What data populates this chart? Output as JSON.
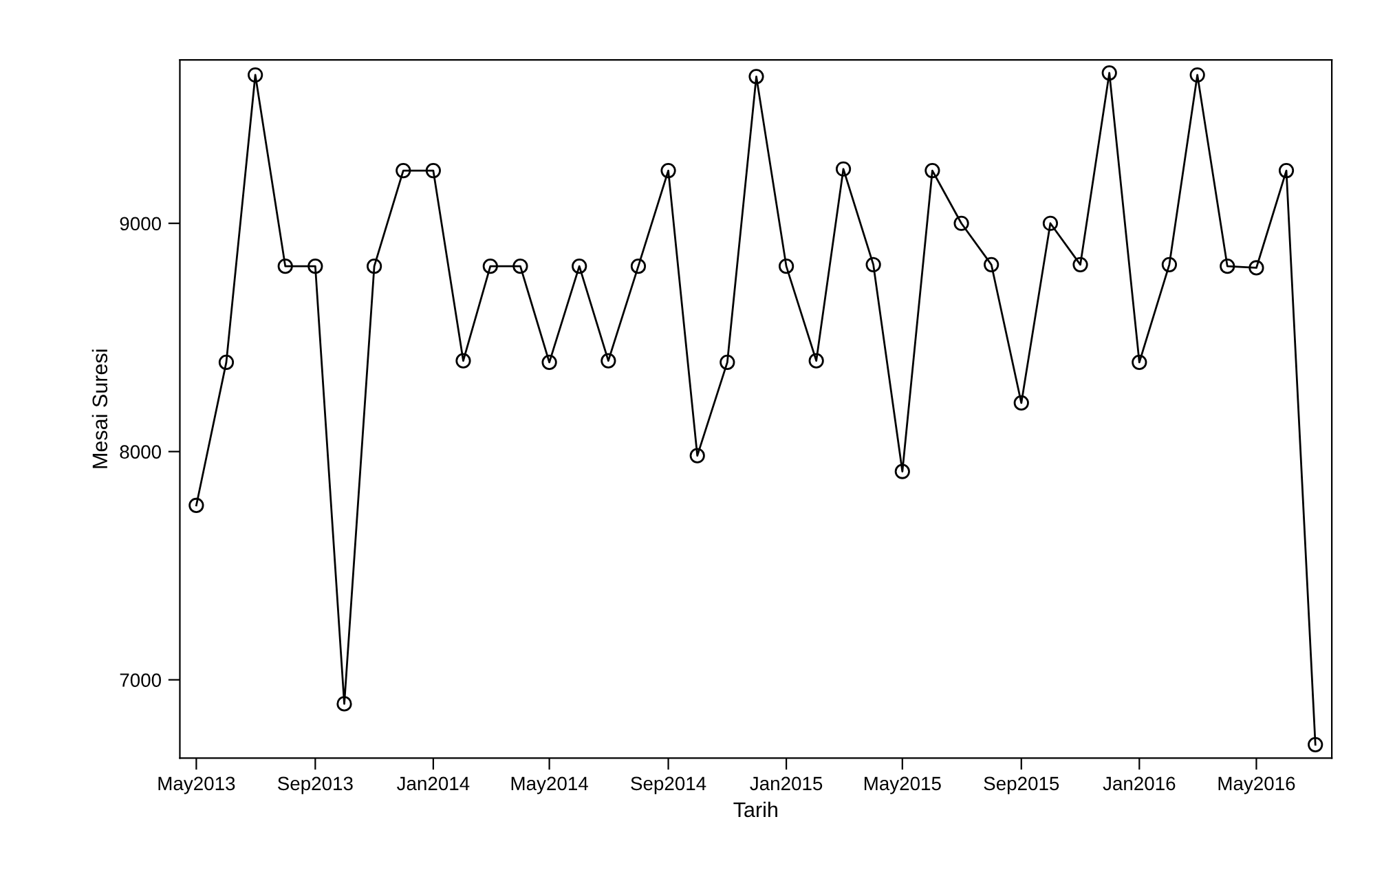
{
  "chart_data": {
    "type": "line",
    "xlabel": "Tarih",
    "ylabel": "Mesai Suresi",
    "marker": "circle",
    "line_style": "solid",
    "grid": false,
    "legend": false,
    "x": [
      "2013-05",
      "2013-06",
      "2013-07",
      "2013-08",
      "2013-09",
      "2013-10",
      "2013-11",
      "2013-12",
      "2014-01",
      "2014-02",
      "2014-03",
      "2014-04",
      "2014-05",
      "2014-06",
      "2014-07",
      "2014-08",
      "2014-09",
      "2014-10",
      "2014-11",
      "2014-12",
      "2015-01",
      "2015-02",
      "2015-03",
      "2015-04",
      "2015-05",
      "2015-06",
      "2015-07",
      "2015-08",
      "2015-09",
      "2015-10",
      "2015-11",
      "2015-12",
      "2016-01",
      "2016-02",
      "2016-03",
      "2016-04",
      "2016-05",
      "2016-06",
      "2016-07"
    ],
    "series": [
      {
        "color": "#000000",
        "values": [
          7764,
          8391,
          9650,
          8812,
          8812,
          6895,
          8812,
          9231,
          9231,
          8398,
          8812,
          8812,
          8391,
          8812,
          8398,
          8812,
          9231,
          7982,
          8391,
          9643,
          8812,
          8398,
          9238,
          8819,
          7913,
          9231,
          9000,
          8819,
          8213,
          9000,
          8819,
          9659,
          8391,
          8819,
          9650,
          8812,
          8805,
          9231,
          6716
        ]
      }
    ],
    "xlim": [
      "2013-04-14",
      "2016-07-18"
    ],
    "ylim": [
      6657,
      9716
    ],
    "xticks": [
      {
        "value": "2013-05",
        "label": "May2013"
      },
      {
        "value": "2013-09",
        "label": "Sep2013"
      },
      {
        "value": "2014-01",
        "label": "Jan2014"
      },
      {
        "value": "2014-05",
        "label": "May2014"
      },
      {
        "value": "2014-09",
        "label": "Sep2014"
      },
      {
        "value": "2015-01",
        "label": "Jan2015"
      },
      {
        "value": "2015-05",
        "label": "May2015"
      },
      {
        "value": "2015-09",
        "label": "Sep2015"
      },
      {
        "value": "2016-01",
        "label": "Jan2016"
      },
      {
        "value": "2016-05",
        "label": "May2016"
      }
    ],
    "yticks": [
      7000,
      8000,
      9000
    ]
  }
}
